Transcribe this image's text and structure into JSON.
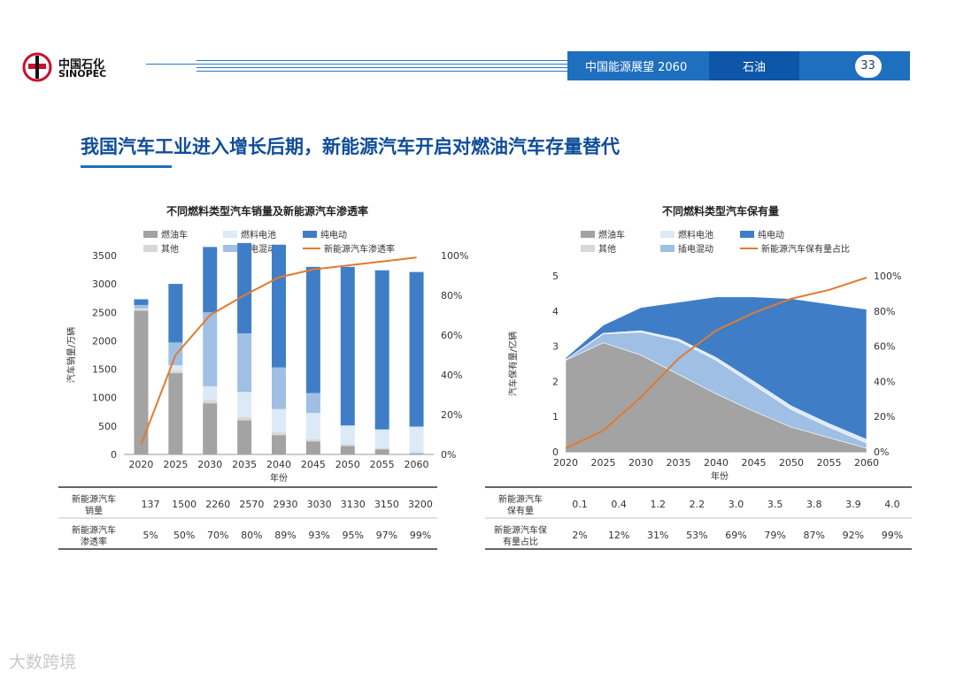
{
  "header": {
    "logo_cn": "中国石化",
    "logo_en": "SINOPEC",
    "report": "中国能源展望 2060",
    "section": "石油",
    "page": "33"
  },
  "title": "我国汽车工业进入增长后期，新能源汽车开启对燃油汽车存量替代",
  "watermark": "大数跨境",
  "colors": {
    "fuel": "#a3a3a3",
    "other": "#d8d8d8",
    "fuelcell": "#dce9f7",
    "hybrid": "#9fbfe5",
    "electric": "#3f7ec7",
    "line": "#e07b30"
  },
  "chart_data": [
    {
      "type": "bar",
      "title": "不同燃料类型汽车销量及新能源汽车渗透率",
      "legend": [
        "燃油车",
        "燃料电池",
        "纯电动",
        "其他",
        "插电混动",
        "新能源汽车渗透率"
      ],
      "categories": [
        "2020",
        "2025",
        "2030",
        "2035",
        "2040",
        "2045",
        "2050",
        "2055",
        "2060"
      ],
      "xlabel": "年份",
      "ylabel": "汽车销量/万辆",
      "ylim": [
        0,
        3500
      ],
      "y_ticks": [
        "0",
        "500",
        "1000",
        "1500",
        "2000",
        "2500",
        "3000",
        "3500"
      ],
      "y2lim": [
        0,
        100
      ],
      "y2_ticks": [
        "0%",
        "20%",
        "40%",
        "60%",
        "80%",
        "100%"
      ],
      "series": [
        {
          "name": "燃油车",
          "values": [
            2530,
            1430,
            900,
            600,
            340,
            230,
            150,
            90,
            20
          ]
        },
        {
          "name": "其他",
          "values": [
            30,
            40,
            60,
            60,
            50,
            40,
            30,
            20,
            20
          ]
        },
        {
          "name": "燃料电池",
          "values": [
            10,
            100,
            240,
            440,
            410,
            460,
            330,
            330,
            450
          ]
        },
        {
          "name": "插电混动",
          "values": [
            60,
            400,
            1300,
            1030,
            730,
            350,
            0,
            0,
            0
          ]
        },
        {
          "name": "纯电动",
          "values": [
            100,
            1030,
            1150,
            1590,
            2160,
            2220,
            2790,
            2800,
            2720
          ]
        }
      ],
      "line": {
        "name": "新能源汽车渗透率",
        "values": [
          5,
          50,
          70,
          80,
          89,
          93,
          95,
          97,
          99
        ]
      },
      "table": {
        "rows": [
          {
            "label": "新能源汽车销量",
            "values": [
              "137",
              "1500",
              "2260",
              "2570",
              "2930",
              "3030",
              "3130",
              "3150",
              "3200"
            ]
          },
          {
            "label": "新能源汽车渗透率",
            "values": [
              "5%",
              "50%",
              "70%",
              "80%",
              "89%",
              "93%",
              "95%",
              "97%",
              "99%"
            ]
          }
        ]
      }
    },
    {
      "type": "area",
      "title": "不同燃料类型汽车保有量",
      "legend": [
        "燃油车",
        "燃料电池",
        "纯电动",
        "其他",
        "插电混动",
        "新能源汽车保有量占比"
      ],
      "x": [
        "2020",
        "2025",
        "2030",
        "2035",
        "2040",
        "2045",
        "2050",
        "2055",
        "2060"
      ],
      "xlabel": "年份",
      "ylabel": "汽车保有量/亿辆",
      "ylim": [
        0,
        5
      ],
      "y_ticks": [
        "0",
        "1",
        "2",
        "3",
        "4",
        "5"
      ],
      "y2lim": [
        0,
        100
      ],
      "y2_ticks": [
        "0%",
        "20%",
        "40%",
        "60%",
        "80%",
        "100%"
      ],
      "series": [
        {
          "name": "燃油车",
          "values": [
            2.6,
            3.1,
            2.75,
            2.2,
            1.65,
            1.15,
            0.7,
            0.4,
            0.1
          ]
        },
        {
          "name": "插电混动",
          "values": [
            0.02,
            0.25,
            0.65,
            0.95,
            0.95,
            0.75,
            0.5,
            0.3,
            0.15
          ]
        },
        {
          "name": "燃料电池",
          "values": [
            0.0,
            0.02,
            0.04,
            0.06,
            0.08,
            0.1,
            0.1,
            0.1,
            0.1
          ]
        },
        {
          "name": "纯电动",
          "values": [
            0.05,
            0.23,
            0.66,
            1.04,
            1.72,
            2.4,
            3.05,
            3.4,
            3.7
          ]
        }
      ],
      "line": {
        "name": "新能源汽车保有量占比",
        "values": [
          2,
          12,
          31,
          53,
          69,
          79,
          87,
          92,
          99
        ]
      },
      "table": {
        "rows": [
          {
            "label": "新能源汽车保有量",
            "values": [
              "0.1",
              "0.4",
              "1.2",
              "2.2",
              "3.0",
              "3.5",
              "3.8",
              "3.9",
              "4.0"
            ]
          },
          {
            "label": "新能源汽车保有量占比",
            "values": [
              "2%",
              "12%",
              "31%",
              "53%",
              "69%",
              "79%",
              "87%",
              "92%",
              "99%"
            ]
          }
        ]
      }
    }
  ]
}
